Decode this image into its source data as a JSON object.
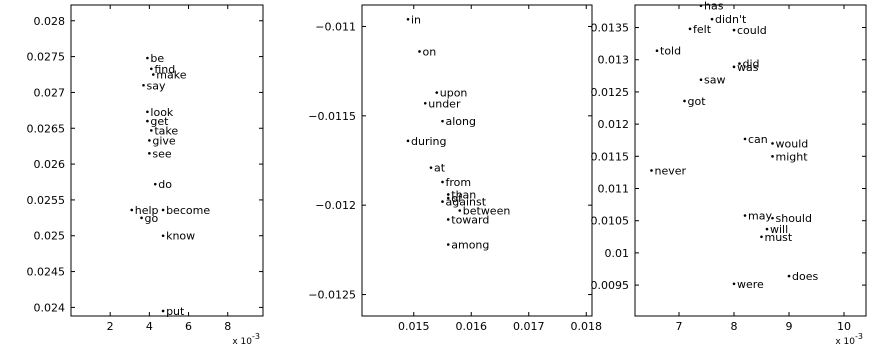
{
  "chart_data": [
    {
      "type": "scatter",
      "title": "",
      "xlabel": "",
      "ylabel": "",
      "x_multiplier_label": "x 10",
      "x_multiplier_exp": "-3",
      "xlim": [
        0.0,
        0.0098
      ],
      "ylim": [
        0.02388,
        0.02822
      ],
      "x_ticks": [
        0.002,
        0.004,
        0.006,
        0.008
      ],
      "x_tick_labels": [
        "2",
        "4",
        "6",
        "8"
      ],
      "y_ticks": [
        0.024,
        0.0245,
        0.025,
        0.0255,
        0.026,
        0.0265,
        0.027,
        0.0275,
        0.028
      ],
      "y_tick_labels": [
        "0.024",
        "0.0245",
        "0.025",
        "0.0255",
        "0.026",
        "0.0265",
        "0.027",
        "0.0275",
        "0.028"
      ],
      "points": [
        {
          "label": "be",
          "x": 0.0039,
          "y": 0.02748
        },
        {
          "label": "find",
          "x": 0.0041,
          "y": 0.02733
        },
        {
          "label": "make",
          "x": 0.0042,
          "y": 0.02725
        },
        {
          "label": "say",
          "x": 0.0037,
          "y": 0.0271
        },
        {
          "label": "look",
          "x": 0.0039,
          "y": 0.02673
        },
        {
          "label": "get",
          "x": 0.0039,
          "y": 0.0266
        },
        {
          "label": "take",
          "x": 0.0041,
          "y": 0.02647
        },
        {
          "label": "give",
          "x": 0.004,
          "y": 0.02633
        },
        {
          "label": "see",
          "x": 0.004,
          "y": 0.02615
        },
        {
          "label": "do",
          "x": 0.0043,
          "y": 0.02572
        },
        {
          "label": "help",
          "x": 0.0031,
          "y": 0.02536
        },
        {
          "label": "become",
          "x": 0.0047,
          "y": 0.02536
        },
        {
          "label": "go",
          "x": 0.0036,
          "y": 0.02525
        },
        {
          "label": "know",
          "x": 0.0047,
          "y": 0.025
        },
        {
          "label": "put",
          "x": 0.0047,
          "y": 0.02395
        }
      ]
    },
    {
      "type": "scatter",
      "title": "",
      "xlabel": "",
      "ylabel": "",
      "xlim": [
        0.0141,
        0.0181
      ],
      "ylim": [
        -0.01262,
        -0.01088
      ],
      "x_ticks": [
        0.015,
        0.016,
        0.017,
        0.018
      ],
      "x_tick_labels": [
        "0.015",
        "0.016",
        "0.017",
        "0.018"
      ],
      "y_ticks": [
        -0.011,
        -0.0115,
        -0.012,
        -0.0125
      ],
      "y_tick_labels": [
        "−0.011",
        "−0.0115",
        "−0.012",
        "−0.0125"
      ],
      "points": [
        {
          "label": "in",
          "x": 0.0149,
          "y": -0.01096
        },
        {
          "label": "on",
          "x": 0.0151,
          "y": -0.01114
        },
        {
          "label": "upon",
          "x": 0.0154,
          "y": -0.01137
        },
        {
          "label": "under",
          "x": 0.0152,
          "y": -0.01143
        },
        {
          "label": "along",
          "x": 0.0155,
          "y": -0.01153
        },
        {
          "label": "during",
          "x": 0.0149,
          "y": -0.01164
        },
        {
          "label": "at",
          "x": 0.0153,
          "y": -0.01179
        },
        {
          "label": "from",
          "x": 0.0155,
          "y": -0.01187
        },
        {
          "label": "than",
          "x": 0.0156,
          "y": -0.01194
        },
        {
          "label": "of",
          "x": 0.0156,
          "y": -0.01196
        },
        {
          "label": "against",
          "x": 0.0155,
          "y": -0.01198
        },
        {
          "label": "between",
          "x": 0.0158,
          "y": -0.01203
        },
        {
          "label": "toward",
          "x": 0.0156,
          "y": -0.01208
        },
        {
          "label": "among",
          "x": 0.0156,
          "y": -0.01222
        }
      ]
    },
    {
      "type": "scatter",
      "title": "",
      "xlabel": "",
      "ylabel": "",
      "x_multiplier_label": "x 10",
      "x_multiplier_exp": "-3",
      "xlim": [
        0.0062,
        0.0104
      ],
      "ylim": [
        0.00902,
        0.01385
      ],
      "x_ticks": [
        0.007,
        0.008,
        0.009,
        0.01
      ],
      "x_tick_labels": [
        "7",
        "8",
        "9",
        "10"
      ],
      "y_ticks": [
        0.0095,
        0.01,
        0.0105,
        0.011,
        0.0115,
        0.012,
        0.0125,
        0.013,
        0.0135
      ],
      "y_tick_labels": [
        "0.0095",
        "0.01",
        "0.0105",
        "0.011",
        "0.0115",
        "0.012",
        "0.0125",
        "0.013",
        "0.0135"
      ],
      "points": [
        {
          "label": "has",
          "x": 0.0074,
          "y": 0.01384
        },
        {
          "label": "didn't",
          "x": 0.0076,
          "y": 0.01363
        },
        {
          "label": "felt",
          "x": 0.0072,
          "y": 0.01348
        },
        {
          "label": "could",
          "x": 0.008,
          "y": 0.01346
        },
        {
          "label": "told",
          "x": 0.0066,
          "y": 0.01314
        },
        {
          "label": "did",
          "x": 0.0081,
          "y": 0.01294
        },
        {
          "label": "was",
          "x": 0.008,
          "y": 0.01289
        },
        {
          "label": "saw",
          "x": 0.0074,
          "y": 0.01269
        },
        {
          "label": "got",
          "x": 0.0071,
          "y": 0.01236
        },
        {
          "label": "can",
          "x": 0.0082,
          "y": 0.01177
        },
        {
          "label": "would",
          "x": 0.0087,
          "y": 0.0117
        },
        {
          "label": "might",
          "x": 0.0087,
          "y": 0.0115
        },
        {
          "label": "never",
          "x": 0.0065,
          "y": 0.01128
        },
        {
          "label": "may",
          "x": 0.0082,
          "y": 0.01058
        },
        {
          "label": "should",
          "x": 0.0087,
          "y": 0.01054
        },
        {
          "label": "will",
          "x": 0.0086,
          "y": 0.01037
        },
        {
          "label": "must",
          "x": 0.0085,
          "y": 0.01025
        },
        {
          "label": "does",
          "x": 0.009,
          "y": 0.00964
        },
        {
          "label": "were",
          "x": 0.008,
          "y": 0.00952
        }
      ]
    }
  ]
}
